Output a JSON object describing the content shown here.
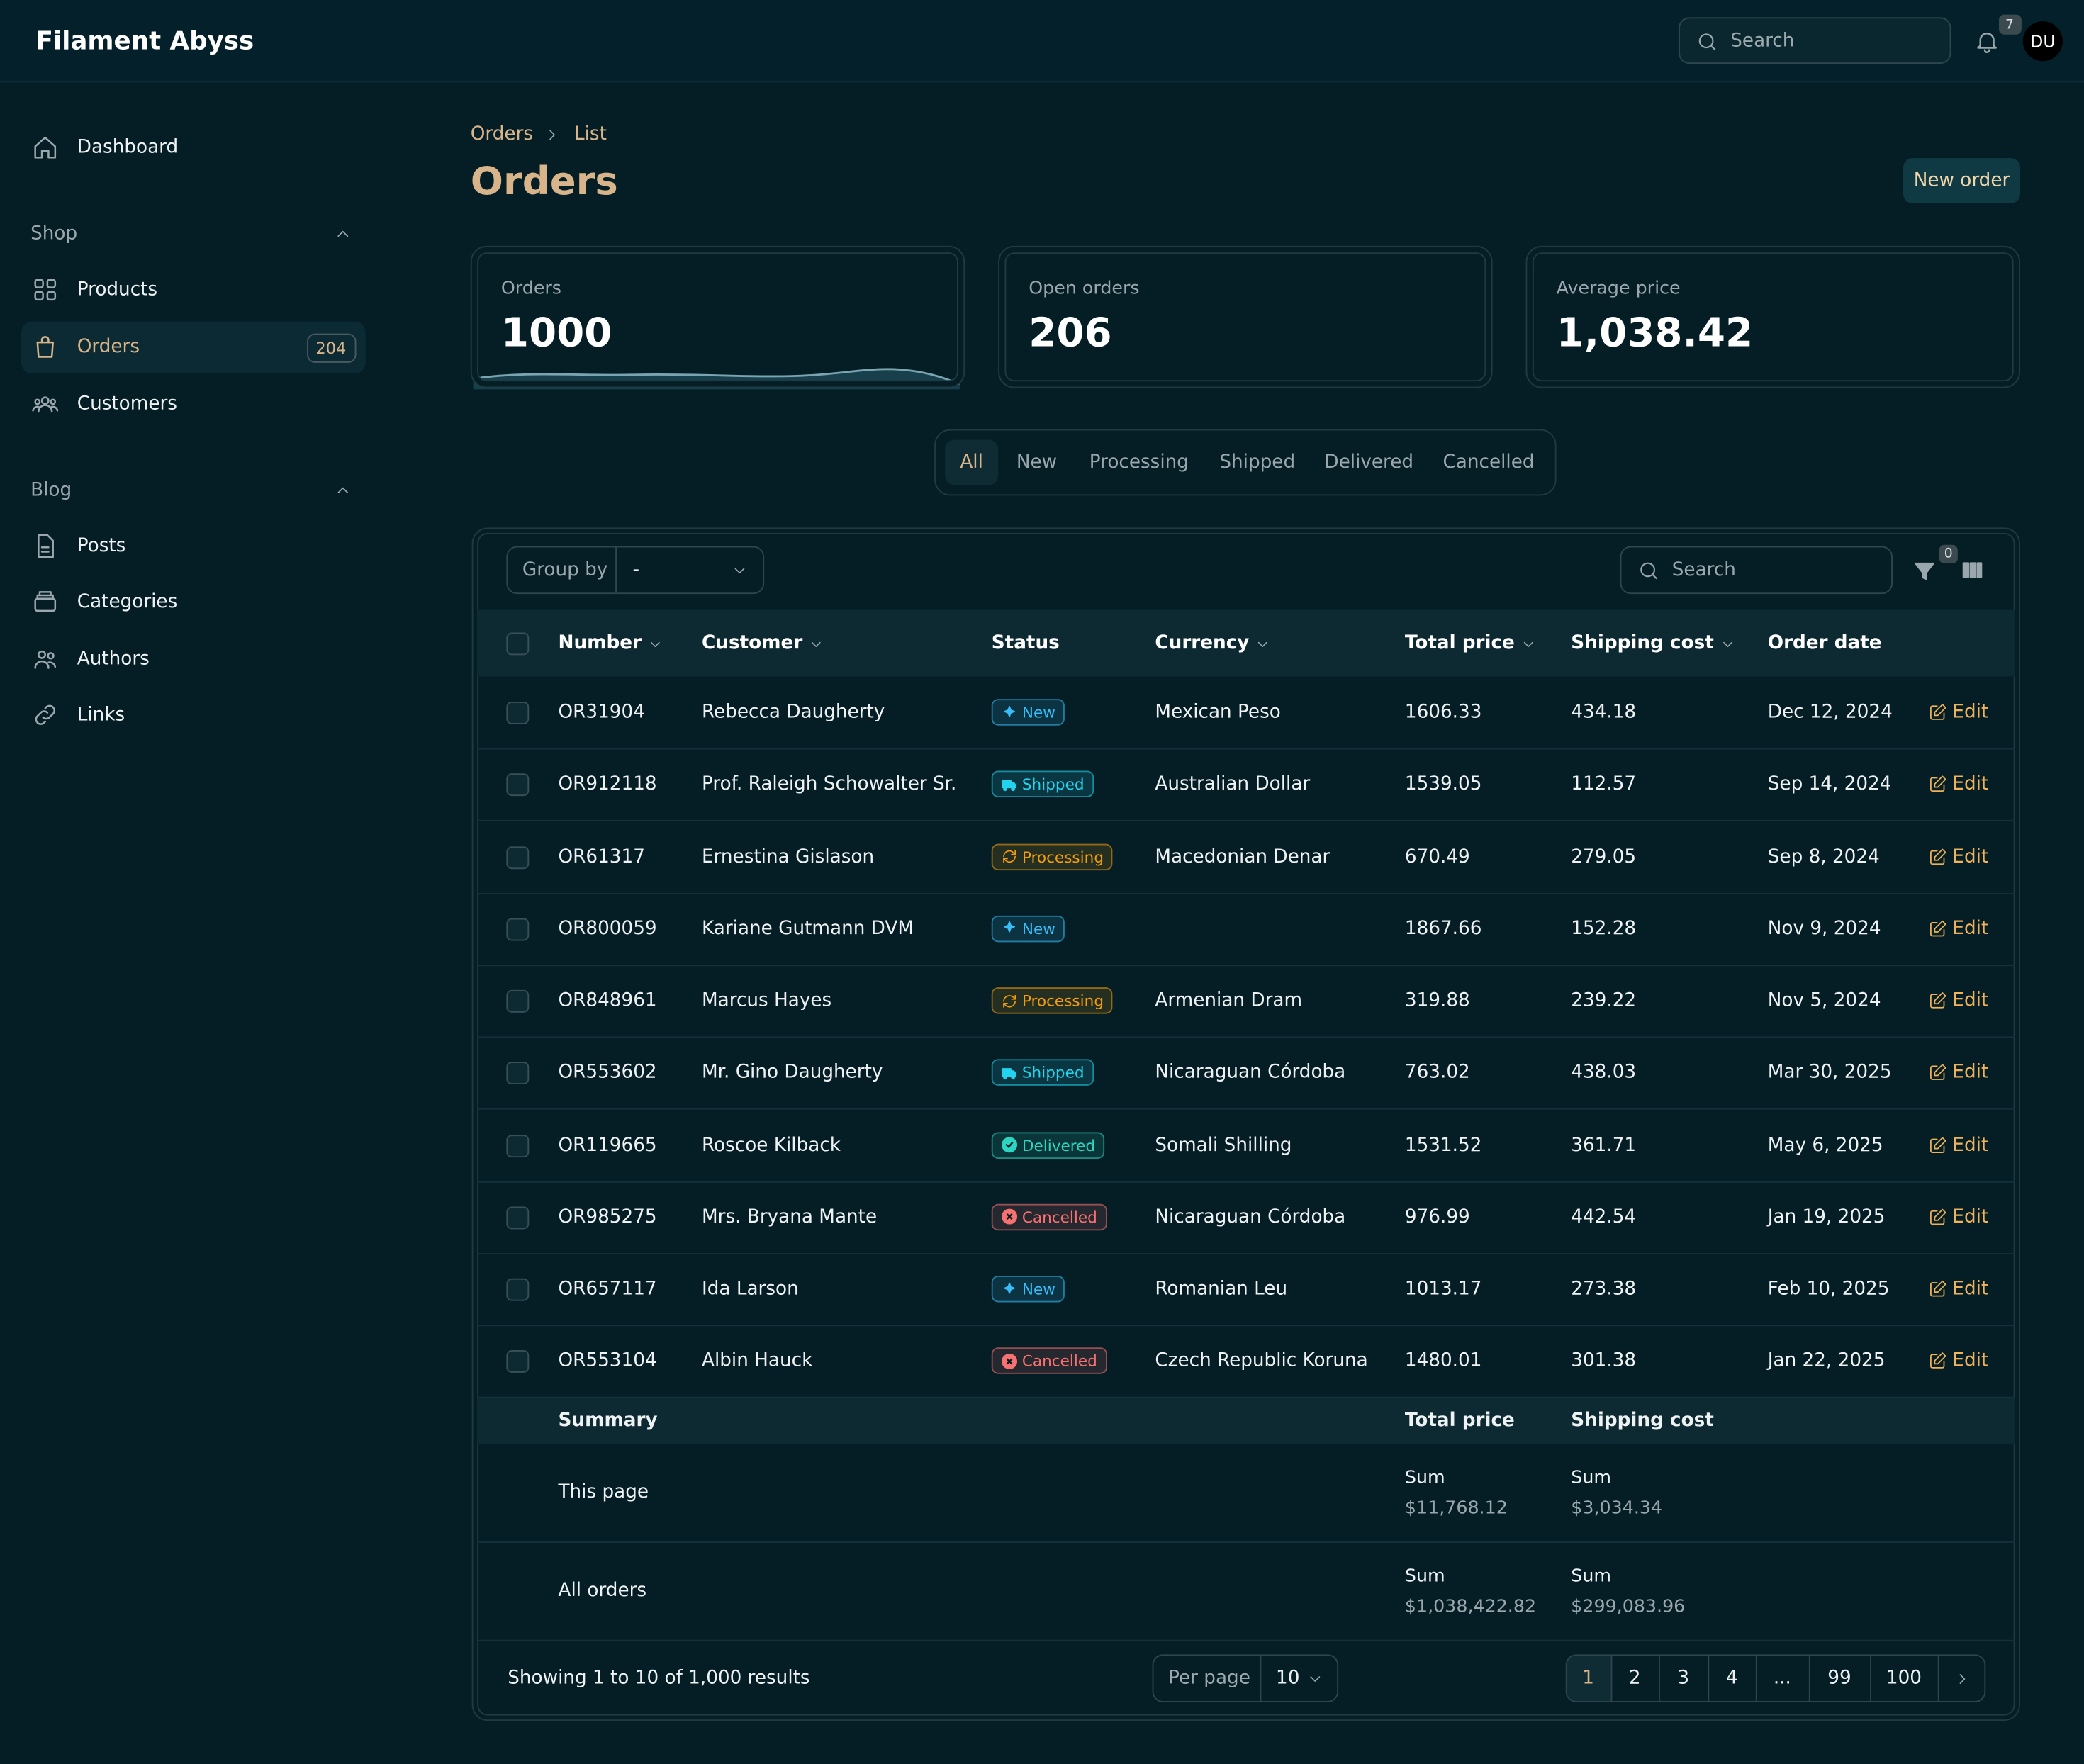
{
  "header": {
    "brand": "Filament Abyss",
    "search_placeholder": "Search",
    "notifications": "7",
    "avatar": "DU"
  },
  "sidebar": {
    "top": [
      "Dashboard"
    ],
    "groups": [
      {
        "label": "Shop",
        "items": [
          "Products",
          "Orders",
          "Customers"
        ]
      },
      {
        "label": "Blog",
        "items": [
          "Posts",
          "Categories",
          "Authors",
          "Links"
        ]
      }
    ],
    "active_badge": "204"
  },
  "page": {
    "breadcrumbs": [
      "Orders",
      "List"
    ],
    "title": "Orders",
    "action": "New order"
  },
  "stats": [
    {
      "label": "Orders",
      "value": "1000"
    },
    {
      "label": "Open orders",
      "value": "206"
    },
    {
      "label": "Average price",
      "value": "1,038.42"
    }
  ],
  "tabs": [
    "All",
    "New",
    "Processing",
    "Shipped",
    "Delivered",
    "Cancelled"
  ],
  "status_colors": {
    "New": "#38bdf8",
    "Shipped": "#22d3ee",
    "Processing": "#f59e0b",
    "Delivered": "#2dd4bf",
    "Cancelled": "#f87171"
  },
  "toolbar": {
    "group_by_label": "Group by",
    "group_by_value": "-",
    "search_placeholder": "Search",
    "filter_count": "0"
  },
  "table": {
    "columns": [
      "Number",
      "Customer",
      "Status",
      "Currency",
      "Total price",
      "Shipping cost",
      "Order date"
    ],
    "row_action": "Edit",
    "rows": [
      [
        "OR31904",
        "Rebecca Daugherty",
        "New",
        "Mexican Peso",
        "1606.33",
        "434.18",
        "Dec 12, 2024"
      ],
      [
        "OR912118",
        "Prof. Raleigh Schowalter Sr.",
        "Shipped",
        "Australian Dollar",
        "1539.05",
        "112.57",
        "Sep 14, 2024"
      ],
      [
        "OR61317",
        "Ernestina Gislason",
        "Processing",
        "Macedonian Denar",
        "670.49",
        "279.05",
        "Sep 8, 2024"
      ],
      [
        "OR800059",
        "Kariane Gutmann DVM",
        "New",
        null,
        "1867.66",
        "152.28",
        "Nov 9, 2024"
      ],
      [
        "OR848961",
        "Marcus Hayes",
        "Processing",
        "Armenian Dram",
        "319.88",
        "239.22",
        "Nov 5, 2024"
      ],
      [
        "OR553602",
        "Mr. Gino Daugherty",
        "Shipped",
        "Nicaraguan Córdoba",
        "763.02",
        "438.03",
        "Mar 30, 2025"
      ],
      [
        "OR119665",
        "Roscoe Kilback",
        "Delivered",
        "Somali Shilling",
        "1531.52",
        "361.71",
        "May 6, 2025"
      ],
      [
        "OR985275",
        "Mrs. Bryana Mante",
        "Cancelled",
        "Nicaraguan Córdoba",
        "976.99",
        "442.54",
        "Jan 19, 2025"
      ],
      [
        "OR657117",
        "Ida Larson",
        "New",
        "Romanian Leu",
        "1013.17",
        "273.38",
        "Feb 10, 2025"
      ],
      [
        "OR553104",
        "Albin Hauck",
        "Cancelled",
        "Czech Republic Koruna",
        "1480.01",
        "301.38",
        "Jan 22, 2025"
      ]
    ]
  },
  "summary": {
    "label": "Summary",
    "columns": [
      "Total price",
      "Shipping cost"
    ],
    "rows": [
      {
        "label": "This page",
        "total_label": "Sum",
        "total": "$11,768.12",
        "shipping_label": "Sum",
        "shipping": "$3,034.34"
      },
      {
        "label": "All orders",
        "total_label": "Sum",
        "total": "$1,038,422.82",
        "shipping_label": "Sum",
        "shipping": "$299,083.96"
      }
    ]
  },
  "pagination": {
    "info": "Showing 1 to 10 of 1,000 results",
    "per_page_label": "Per page",
    "per_page": "10",
    "pages": [
      "1",
      "2",
      "3",
      "4",
      "...",
      "99",
      "100"
    ]
  }
}
